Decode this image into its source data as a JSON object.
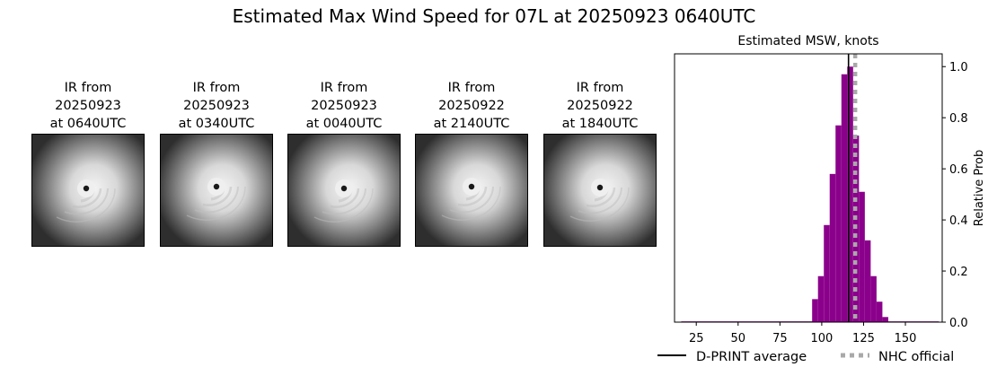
{
  "title": "Estimated Max Wind Speed for 07L at 20250923 0640UTC",
  "ir_panels": [
    {
      "line1": "IR from",
      "line2": "20250923",
      "line3": "at 0640UTC"
    },
    {
      "line1": "IR from",
      "line2": "20250923",
      "line3": "at 0340UTC"
    },
    {
      "line1": "IR from",
      "line2": "20250923",
      "line3": "at 0040UTC"
    },
    {
      "line1": "IR from",
      "line2": "20250922",
      "line3": "at 2140UTC"
    },
    {
      "line1": "IR from",
      "line2": "20250922",
      "line3": "at 1840UTC"
    }
  ],
  "chart_data": {
    "type": "bar",
    "title": "Estimated MSW, knots",
    "ylabel": "Relative Prob",
    "xlim": [
      12,
      172
    ],
    "ylim": [
      0,
      1.05
    ],
    "xticks": [
      25,
      50,
      75,
      100,
      125,
      150
    ],
    "yticks": [
      0.0,
      0.2,
      0.4,
      0.6,
      0.8,
      1.0
    ],
    "bin_width": 3.5,
    "bin_centers": [
      96,
      99.5,
      103,
      106.5,
      110,
      113.5,
      117,
      120.5,
      124,
      127.5,
      131,
      134.5,
      138
    ],
    "values": [
      0.09,
      0.18,
      0.38,
      0.58,
      0.77,
      0.97,
      1.0,
      0.73,
      0.51,
      0.32,
      0.18,
      0.08,
      0.02
    ],
    "baseline_value": 0.003,
    "baseline_range": [
      16,
      170
    ],
    "bar_color": "#8b008b",
    "dprint_average": 116,
    "nhc_official": 120,
    "legend": [
      {
        "label": "D-PRINT average",
        "style": "solid",
        "color": "#000000"
      },
      {
        "label": "NHC official",
        "style": "dotted",
        "color": "#a9a9a9"
      }
    ]
  }
}
